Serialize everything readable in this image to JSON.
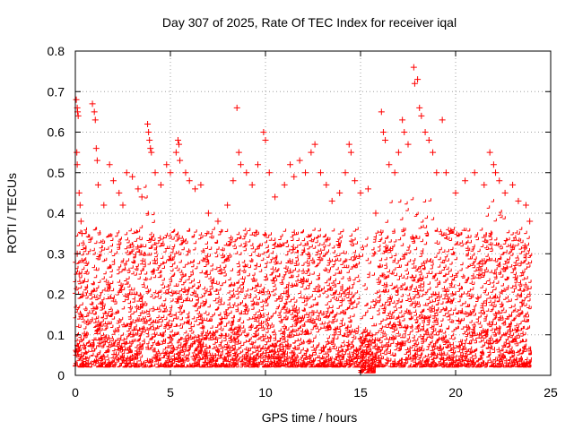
{
  "chart_data": {
    "type": "scatter",
    "title": "Day 307 of 2025, Rate Of TEC Index for receiver iqal",
    "xlabel": "GPS time / hours",
    "ylabel": "ROTI / TECUs",
    "xlim": [
      0,
      25
    ],
    "ylim": [
      0,
      0.8
    ],
    "x_ticks": [
      0,
      5,
      10,
      15,
      20,
      25
    ],
    "y_ticks": [
      0,
      0.1,
      0.2,
      0.3,
      0.4,
      0.5,
      0.6,
      0.7,
      0.8
    ],
    "x_tick_labels": [
      "0",
      "5",
      "10",
      "15",
      "20",
      "25"
    ],
    "y_tick_labels": [
      "0",
      "0.1",
      "0.2",
      "0.3",
      "0.4",
      "0.5",
      "0.6",
      "0.7",
      "0.8"
    ],
    "grid": true,
    "marker": "plus",
    "marker_color": "#ff0000",
    "series": [
      {
        "points": [
          [
            0.05,
            0.68
          ],
          [
            0.1,
            0.66
          ],
          [
            0.12,
            0.65
          ],
          [
            0.15,
            0.64
          ],
          [
            0.08,
            0.55
          ],
          [
            0.1,
            0.52
          ],
          [
            0.2,
            0.45
          ],
          [
            0.25,
            0.42
          ],
          [
            0.3,
            0.38
          ],
          [
            0.35,
            0.35
          ],
          [
            0.1,
            0.3
          ],
          [
            0.2,
            0.25
          ],
          [
            0.9,
            0.67
          ],
          [
            1.0,
            0.65
          ],
          [
            1.05,
            0.63
          ],
          [
            1.1,
            0.56
          ],
          [
            1.15,
            0.53
          ],
          [
            1.2,
            0.47
          ],
          [
            1.5,
            0.42
          ],
          [
            1.8,
            0.52
          ],
          [
            2.0,
            0.48
          ],
          [
            2.3,
            0.45
          ],
          [
            2.5,
            0.42
          ],
          [
            2.7,
            0.5
          ],
          [
            3.0,
            0.49
          ],
          [
            3.3,
            0.46
          ],
          [
            3.5,
            0.44
          ],
          [
            3.8,
            0.62
          ],
          [
            3.85,
            0.6
          ],
          [
            3.9,
            0.58
          ],
          [
            3.95,
            0.56
          ],
          [
            4.0,
            0.55
          ],
          [
            4.2,
            0.5
          ],
          [
            4.5,
            0.47
          ],
          [
            4.8,
            0.52
          ],
          [
            5.0,
            0.5
          ],
          [
            5.3,
            0.55
          ],
          [
            5.4,
            0.58
          ],
          [
            5.45,
            0.57
          ],
          [
            5.5,
            0.53
          ],
          [
            5.8,
            0.5
          ],
          [
            6.0,
            0.48
          ],
          [
            6.3,
            0.46
          ],
          [
            6.6,
            0.47
          ],
          [
            7.0,
            0.4
          ],
          [
            7.5,
            0.38
          ],
          [
            8.0,
            0.42
          ],
          [
            8.3,
            0.48
          ],
          [
            8.5,
            0.66
          ],
          [
            8.6,
            0.55
          ],
          [
            8.7,
            0.52
          ],
          [
            9.0,
            0.5
          ],
          [
            9.3,
            0.47
          ],
          [
            9.6,
            0.52
          ],
          [
            9.9,
            0.6
          ],
          [
            10.0,
            0.58
          ],
          [
            10.2,
            0.5
          ],
          [
            10.5,
            0.44
          ],
          [
            11.0,
            0.47
          ],
          [
            11.3,
            0.52
          ],
          [
            11.5,
            0.49
          ],
          [
            11.8,
            0.53
          ],
          [
            12.1,
            0.5
          ],
          [
            12.4,
            0.55
          ],
          [
            12.6,
            0.57
          ],
          [
            12.9,
            0.5
          ],
          [
            13.2,
            0.47
          ],
          [
            13.5,
            0.43
          ],
          [
            13.9,
            0.45
          ],
          [
            14.2,
            0.5
          ],
          [
            14.4,
            0.57
          ],
          [
            14.5,
            0.55
          ],
          [
            14.7,
            0.48
          ],
          [
            15.0,
            0.45
          ],
          [
            15.4,
            0.46
          ],
          [
            15.8,
            0.4
          ],
          [
            16.1,
            0.65
          ],
          [
            16.2,
            0.6
          ],
          [
            16.3,
            0.58
          ],
          [
            16.5,
            0.52
          ],
          [
            16.8,
            0.5
          ],
          [
            17.0,
            0.55
          ],
          [
            17.2,
            0.63
          ],
          [
            17.3,
            0.6
          ],
          [
            17.5,
            0.57
          ],
          [
            17.8,
            0.76
          ],
          [
            17.85,
            0.72
          ],
          [
            18.0,
            0.73
          ],
          [
            18.1,
            0.66
          ],
          [
            18.2,
            0.64
          ],
          [
            18.4,
            0.6
          ],
          [
            18.6,
            0.58
          ],
          [
            18.8,
            0.55
          ],
          [
            19.0,
            0.5
          ],
          [
            19.3,
            0.63
          ],
          [
            19.5,
            0.5
          ],
          [
            20.0,
            0.45
          ],
          [
            20.5,
            0.48
          ],
          [
            21.0,
            0.5
          ],
          [
            21.5,
            0.47
          ],
          [
            21.8,
            0.55
          ],
          [
            22.0,
            0.52
          ],
          [
            22.1,
            0.5
          ],
          [
            22.3,
            0.48
          ],
          [
            22.6,
            0.45
          ],
          [
            23.0,
            0.47
          ],
          [
            23.3,
            0.43
          ],
          [
            23.7,
            0.42
          ],
          [
            23.9,
            0.38
          ]
        ]
      }
    ]
  }
}
